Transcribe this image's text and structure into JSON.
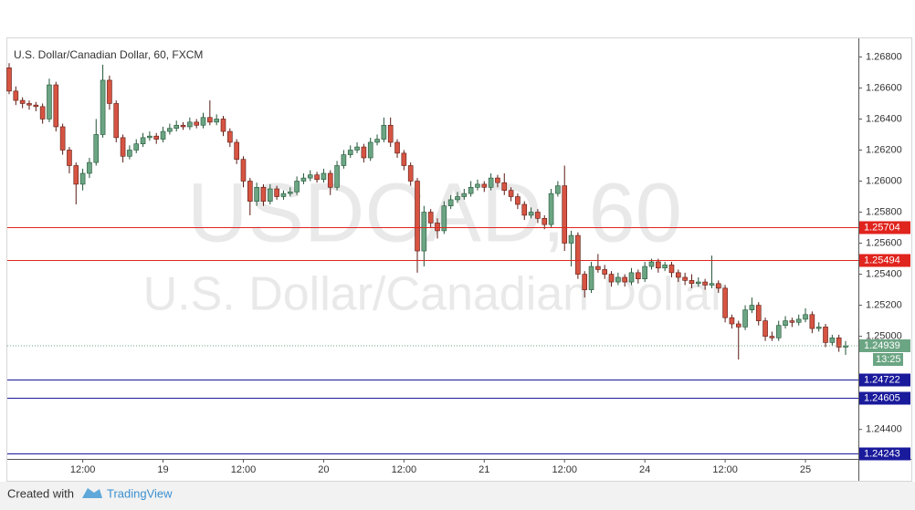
{
  "chart_data": {
    "type": "candlestick",
    "title": "U.S. Dollar/Canadian Dollar, 60, FXCM",
    "watermark": [
      "USDCAD, 60",
      "U.S. Dollar/Canadian Dollar"
    ],
    "categories": [
      null,
      null,
      null,
      null,
      null,
      null,
      null,
      null,
      null,
      null,
      null,
      "12:00",
      null,
      null,
      null,
      null,
      null,
      null,
      null,
      null,
      null,
      null,
      null,
      "19",
      null,
      null,
      null,
      null,
      null,
      null,
      null,
      null,
      null,
      null,
      null,
      "12:00",
      null,
      null,
      null,
      null,
      null,
      null,
      null,
      null,
      null,
      null,
      null,
      "20",
      null,
      null,
      null,
      null,
      null,
      null,
      null,
      null,
      null,
      null,
      null,
      "12:00",
      null,
      null,
      null,
      null,
      null,
      null,
      null,
      null,
      null,
      null,
      null,
      "21",
      null,
      null,
      null,
      null,
      null,
      null,
      null,
      null,
      null,
      null,
      null,
      "12:00",
      null,
      null,
      null,
      null,
      null,
      null,
      null,
      null,
      null,
      null,
      null,
      "24",
      null,
      null,
      null,
      null,
      null,
      null,
      null,
      null,
      null,
      null,
      null,
      "12:00",
      null,
      null,
      null,
      null,
      null,
      null,
      null,
      null,
      null,
      null,
      null,
      "25",
      null,
      null,
      null,
      null,
      null,
      null
    ],
    "open": [
      1.2673,
      1.2658,
      1.2652,
      1.265,
      1.2649,
      1.2648,
      1.264,
      1.2662,
      1.2635,
      1.262,
      1.261,
      1.2598,
      1.2605,
      1.2612,
      1.263,
      1.2665,
      1.265,
      1.2628,
      1.2616,
      1.262,
      1.2624,
      1.2628,
      1.2629,
      1.2627,
      1.2632,
      1.2634,
      1.2636,
      1.2635,
      1.2638,
      1.2636,
      1.2641,
      1.2638,
      1.264,
      1.2632,
      1.2625,
      1.2614,
      1.26,
      1.2587,
      1.2596,
      1.2587,
      1.2595,
      1.259,
      1.2592,
      1.2593,
      1.26,
      1.2602,
      1.2604,
      1.2601,
      1.2605,
      1.2596,
      1.261,
      1.2617,
      1.262,
      1.2622,
      1.2615,
      1.2625,
      1.2627,
      1.2636,
      1.2625,
      1.2618,
      1.261,
      1.26,
      1.2555,
      1.258,
      1.2573,
      1.2568,
      1.2584,
      1.2588,
      1.259,
      1.2592,
      1.2596,
      1.2598,
      1.2596,
      1.2602,
      1.2599,
      1.2594,
      1.259,
      1.2585,
      1.2578,
      1.258,
      1.2576,
      1.2572,
      1.2592,
      1.2597,
      1.256,
      1.2565,
      1.254,
      1.253,
      1.2545,
      1.2543,
      1.254,
      1.2535,
      1.2538,
      1.2535,
      1.2541,
      1.2537,
      1.2545,
      1.2548,
      1.2544,
      1.2546,
      1.2541,
      1.2538,
      1.2536,
      1.2534,
      1.2535,
      1.2533,
      1.2534,
      1.2531,
      1.2512,
      1.2508,
      1.2506,
      1.2517,
      1.252,
      1.251,
      1.25,
      1.2499,
      1.2507,
      1.251,
      1.2509,
      1.2511,
      1.2514,
      1.2505,
      1.2506,
      1.2496,
      1.2499,
      1.2493
    ],
    "high": [
      1.2676,
      1.2661,
      1.2654,
      1.2652,
      1.2651,
      1.265,
      1.2666,
      1.2664,
      1.2637,
      1.2622,
      1.2612,
      1.2608,
      1.2615,
      1.264,
      1.2675,
      1.2668,
      1.2652,
      1.263,
      1.2623,
      1.2627,
      1.2631,
      1.2632,
      1.2631,
      1.2635,
      1.2637,
      1.2639,
      1.2638,
      1.2641,
      1.264,
      1.2644,
      1.2652,
      1.2643,
      1.2642,
      1.2634,
      1.2627,
      1.2616,
      1.2602,
      1.2599,
      1.2598,
      1.2598,
      1.2597,
      1.2594,
      1.2596,
      1.2603,
      1.2605,
      1.2607,
      1.2606,
      1.2608,
      1.2607,
      1.2613,
      1.262,
      1.2623,
      1.2625,
      1.2624,
      1.2628,
      1.263,
      1.2641,
      1.2641,
      1.2627,
      1.262,
      1.2612,
      1.2602,
      1.2584,
      1.2582,
      1.2576,
      1.2587,
      1.2591,
      1.2593,
      1.2595,
      1.26,
      1.2601,
      1.26,
      1.2605,
      1.2604,
      1.2605,
      1.2596,
      1.2592,
      1.2587,
      1.2583,
      1.2582,
      1.2578,
      1.2595,
      1.26,
      1.261,
      1.2568,
      1.2567,
      1.2542,
      1.2548,
      1.2553,
      1.2546,
      1.2542,
      1.2541,
      1.254,
      1.2544,
      1.2543,
      1.2548,
      1.255,
      1.255,
      1.2548,
      1.2548,
      1.2543,
      1.2541,
      1.254,
      1.2538,
      1.2537,
      1.2552,
      1.2536,
      1.2533,
      1.2514,
      1.251,
      1.252,
      1.2525,
      1.2522,
      1.2512,
      1.2503,
      1.251,
      1.2513,
      1.2512,
      1.2514,
      1.2518,
      1.2516,
      1.2509,
      1.2508,
      1.2501,
      1.2501,
      1.2497
    ],
    "low": [
      1.2656,
      1.2649,
      1.2647,
      1.2646,
      1.2645,
      1.2637,
      1.2638,
      1.2632,
      1.2617,
      1.2605,
      1.2585,
      1.2594,
      1.2602,
      1.261,
      1.2628,
      1.2646,
      1.2625,
      1.2612,
      1.2614,
      1.2618,
      1.2622,
      1.2626,
      1.2624,
      1.2625,
      1.263,
      1.2632,
      1.2633,
      1.2633,
      1.2634,
      1.2634,
      1.2636,
      1.2636,
      1.2629,
      1.2622,
      1.2611,
      1.2596,
      1.2578,
      1.2584,
      1.2584,
      1.2585,
      1.2588,
      1.2588,
      1.259,
      1.2591,
      1.2598,
      1.26,
      1.2599,
      1.2599,
      1.2591,
      1.2594,
      1.2608,
      1.2615,
      1.2618,
      1.2612,
      1.2613,
      1.2623,
      1.2625,
      1.2622,
      1.2615,
      1.2607,
      1.2597,
      1.2541,
      1.2545,
      1.257,
      1.2563,
      1.2566,
      1.2582,
      1.2586,
      1.2588,
      1.259,
      1.2594,
      1.2593,
      1.2594,
      1.2596,
      1.2591,
      1.2587,
      1.2582,
      1.2575,
      1.2576,
      1.2573,
      1.2569,
      1.257,
      1.259,
      1.2555,
      1.2545,
      1.2537,
      1.2525,
      1.2528,
      1.2541,
      1.2537,
      1.2532,
      1.2533,
      1.2532,
      1.2533,
      1.2534,
      1.2535,
      1.2543,
      1.2541,
      1.2542,
      1.2538,
      1.2535,
      1.2533,
      1.2531,
      1.2532,
      1.253,
      1.2531,
      1.2528,
      1.2509,
      1.2505,
      1.2485,
      1.2504,
      1.2515,
      1.2507,
      1.2497,
      1.2497,
      1.2497,
      1.2505,
      1.2506,
      1.2507,
      1.2509,
      1.2502,
      1.2503,
      1.2493,
      1.2494,
      1.249,
      1.2488
    ],
    "close": [
      1.2658,
      1.2652,
      1.265,
      1.2649,
      1.2648,
      1.264,
      1.2662,
      1.2635,
      1.262,
      1.261,
      1.2598,
      1.2605,
      1.2612,
      1.263,
      1.2665,
      1.265,
      1.2628,
      1.2616,
      1.262,
      1.2624,
      1.2628,
      1.2629,
      1.2627,
      1.2632,
      1.2634,
      1.2636,
      1.2635,
      1.2638,
      1.2636,
      1.2641,
      1.2638,
      1.264,
      1.2632,
      1.2625,
      1.2614,
      1.26,
      1.2587,
      1.2596,
      1.2587,
      1.2595,
      1.259,
      1.2592,
      1.2593,
      1.26,
      1.2602,
      1.2604,
      1.2601,
      1.2605,
      1.2596,
      1.261,
      1.2617,
      1.262,
      1.2622,
      1.2615,
      1.2625,
      1.2627,
      1.2636,
      1.2625,
      1.2618,
      1.261,
      1.26,
      1.2555,
      1.258,
      1.2573,
      1.2568,
      1.2584,
      1.2588,
      1.259,
      1.2592,
      1.2596,
      1.2598,
      1.2596,
      1.2602,
      1.2599,
      1.2594,
      1.259,
      1.2585,
      1.2578,
      1.258,
      1.2576,
      1.2572,
      1.2592,
      1.2597,
      1.256,
      1.2565,
      1.254,
      1.253,
      1.2545,
      1.2543,
      1.254,
      1.2535,
      1.2538,
      1.2535,
      1.2541,
      1.2537,
      1.2545,
      1.2548,
      1.2544,
      1.2546,
      1.2541,
      1.2538,
      1.2536,
      1.2534,
      1.2535,
      1.2533,
      1.2534,
      1.2531,
      1.2512,
      1.2508,
      1.2506,
      1.2517,
      1.252,
      1.251,
      1.25,
      1.2499,
      1.2507,
      1.251,
      1.2509,
      1.2511,
      1.2514,
      1.2505,
      1.2506,
      1.2496,
      1.2499,
      1.2493,
      1.24939
    ],
    "up_color": "#6ba583",
    "down_color": "#d75442",
    "ylim": [
      1.2421,
      1.2692
    ],
    "yticks": [
      {
        "value": 1.244,
        "label": "1.24400"
      },
      {
        "value": 1.25,
        "label": "1.25000"
      },
      {
        "value": 1.252,
        "label": "1.25200"
      },
      {
        "value": 1.254,
        "label": "1.25400"
      },
      {
        "value": 1.256,
        "label": "1.25600"
      },
      {
        "value": 1.258,
        "label": "1.25800"
      },
      {
        "value": 1.26,
        "label": "1.26000"
      },
      {
        "value": 1.262,
        "label": "1.26200"
      },
      {
        "value": 1.264,
        "label": "1.26400"
      },
      {
        "value": 1.266,
        "label": "1.26600"
      },
      {
        "value": 1.268,
        "label": "1.26800"
      }
    ],
    "levels": [
      {
        "value": 1.25704,
        "color": "#e0241e"
      },
      {
        "value": 1.25494,
        "color": "#e0241e"
      },
      {
        "value": 1.24722,
        "color": "#1a1a9c"
      },
      {
        "value": 1.24605,
        "color": "#1a1a9c"
      },
      {
        "value": 1.24243,
        "color": "#1a1a9c"
      }
    ],
    "last_price": 1.24939,
    "countdown": "13:25"
  },
  "footer": {
    "created": "Created with",
    "brand": "TradingView"
  }
}
